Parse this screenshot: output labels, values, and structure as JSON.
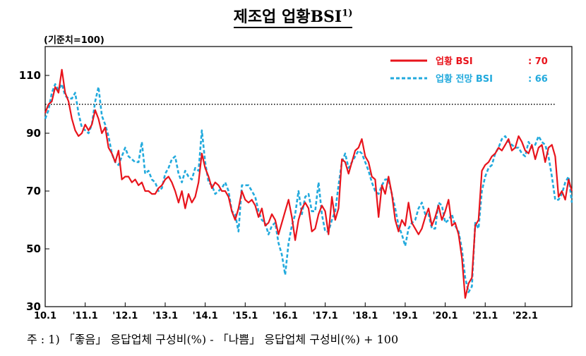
{
  "title": "제조업 업황BSI",
  "title_note": "1)",
  "unit_label": "(기준치=100)",
  "footnote": "주 : 1) 「좋음」 응답업체 구성비(%) - 「나쁨」 응답업체 구성비(%) + 100",
  "colors": {
    "bsi": "#e8141c",
    "outlook": "#22aadd",
    "reference": "#000000"
  },
  "chart_data": {
    "type": "line",
    "title": "제조업 업황BSI",
    "ylabel": "(기준치=100)",
    "ylim": [
      30,
      120
    ],
    "yticks": [
      30,
      50,
      70,
      90,
      110
    ],
    "xticks": [
      "10.1",
      "'11.1",
      "'12.1",
      "'13.1",
      "'14.1",
      "'15.1",
      "'16.1",
      "'17.1",
      "'18.1",
      "'19.1",
      "'20.1",
      "'21.1",
      "'22.1"
    ],
    "reference_line": 100,
    "grid": false,
    "legend_position": "top-right",
    "series": [
      {
        "name": "업황 BSI",
        "latest_label": ": 70",
        "values": [
          97,
          100,
          101,
          106,
          104,
          112,
          104,
          101,
          95,
          91,
          89,
          90,
          93,
          91,
          93,
          98,
          95,
          90,
          92,
          85,
          83,
          80,
          84,
          74,
          75,
          75,
          73,
          74,
          72,
          73,
          70,
          70,
          69,
          69,
          71,
          72,
          74,
          75,
          73,
          70,
          66,
          70,
          64,
          69,
          66,
          68,
          73,
          83,
          78,
          75,
          71,
          73,
          72,
          70,
          70,
          68,
          63,
          60,
          64,
          70,
          67,
          66,
          67,
          65,
          61,
          64,
          58,
          59,
          62,
          60,
          55,
          59,
          63,
          67,
          61,
          53,
          60,
          64,
          66,
          64,
          56,
          57,
          62,
          65,
          63,
          55,
          68,
          60,
          64,
          81,
          80,
          76,
          80,
          84,
          85,
          88,
          82,
          80,
          75,
          74,
          61,
          72,
          69,
          75,
          69,
          60,
          56,
          60,
          58,
          66,
          59,
          57,
          55,
          57,
          61,
          64,
          58,
          61,
          65,
          60,
          63,
          67,
          58,
          59,
          55,
          47,
          33,
          38,
          40,
          58,
          60,
          77,
          79,
          80,
          82,
          83,
          85,
          84,
          86,
          88,
          84,
          85,
          89,
          87,
          84,
          83,
          86,
          81,
          85,
          86,
          80,
          85,
          86,
          82,
          68,
          70,
          67,
          74,
          70
        ]
      },
      {
        "name": "업황 전망 BSI",
        "latest_label": ": 66",
        "values": [
          95,
          98,
          104,
          107,
          105,
          107,
          103,
          102,
          102,
          104,
          97,
          92,
          91,
          90,
          93,
          101,
          106,
          96,
          93,
          89,
          83,
          80,
          79,
          82,
          85,
          82,
          81,
          80,
          80,
          87,
          76,
          77,
          74,
          73,
          70,
          71,
          76,
          78,
          81,
          82,
          76,
          73,
          77,
          75,
          74,
          78,
          77,
          91,
          80,
          73,
          72,
          69,
          70,
          71,
          73,
          70,
          63,
          62,
          56,
          72,
          72,
          72,
          70,
          68,
          63,
          60,
          59,
          55,
          58,
          59,
          52,
          48,
          41,
          52,
          58,
          62,
          70,
          62,
          68,
          69,
          63,
          63,
          73,
          62,
          56,
          56,
          60,
          63,
          72,
          80,
          83,
          78,
          80,
          82,
          84,
          83,
          80,
          77,
          73,
          70,
          69,
          72,
          74,
          74,
          69,
          64,
          58,
          55,
          51,
          57,
          59,
          60,
          64,
          66,
          62,
          62,
          57,
          57,
          66,
          65,
          59,
          60,
          62,
          58,
          56,
          50,
          40,
          35,
          37,
          59,
          57,
          70,
          75,
          78,
          79,
          83,
          85,
          88,
          89,
          87,
          86,
          85,
          85,
          83,
          82,
          87,
          85,
          86,
          89,
          87,
          86,
          82,
          75,
          67,
          67,
          69,
          73,
          75,
          66
        ]
      }
    ]
  }
}
